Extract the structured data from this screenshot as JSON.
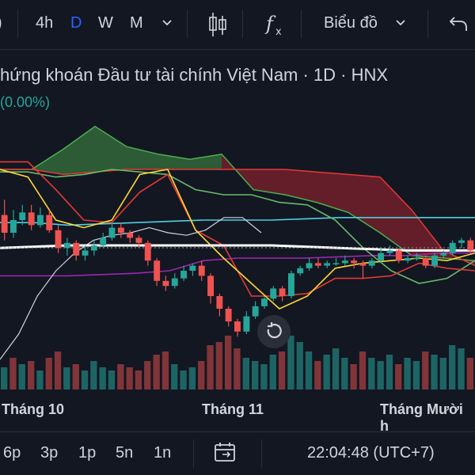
{
  "toolbar": {
    "partial_left": ")",
    "intervals": [
      "4h",
      "D",
      "W",
      "M"
    ],
    "active_interval": "D",
    "chart_type_label": "Biểu đồ"
  },
  "header": {
    "title": "hứng khoán Đầu tư tài chính Việt Nam · 1D · HNX",
    "change": "(0.00%)"
  },
  "chart_data": {
    "type": "candlestick",
    "x_labels": [
      "Tháng 10",
      "Tháng 11",
      "Tháng Mười h"
    ],
    "colors": {
      "up": "#26a69a",
      "down": "#ef5350",
      "background": "#131722"
    },
    "indicators": [
      "Ichimoku cloud",
      "moving averages",
      "volume"
    ],
    "candles_ohlc": [
      [
        0.62,
        0.55,
        0.68,
        0.52
      ],
      [
        0.55,
        0.6,
        0.64,
        0.53
      ],
      [
        0.6,
        0.63,
        0.66,
        0.58
      ],
      [
        0.63,
        0.58,
        0.66,
        0.56
      ],
      [
        0.58,
        0.62,
        0.65,
        0.57
      ],
      [
        0.62,
        0.56,
        0.64,
        0.55
      ],
      [
        0.56,
        0.49,
        0.58,
        0.47
      ],
      [
        0.49,
        0.51,
        0.53,
        0.46
      ],
      [
        0.51,
        0.46,
        0.52,
        0.44
      ],
      [
        0.46,
        0.48,
        0.5,
        0.44
      ],
      [
        0.48,
        0.5,
        0.52,
        0.46
      ],
      [
        0.5,
        0.53,
        0.55,
        0.49
      ],
      [
        0.53,
        0.57,
        0.59,
        0.52
      ],
      [
        0.57,
        0.55,
        0.59,
        0.53
      ],
      [
        0.55,
        0.53,
        0.56,
        0.51
      ],
      [
        0.53,
        0.51,
        0.54,
        0.49
      ],
      [
        0.51,
        0.44,
        0.52,
        0.42
      ],
      [
        0.44,
        0.36,
        0.45,
        0.34
      ],
      [
        0.36,
        0.34,
        0.38,
        0.32
      ],
      [
        0.34,
        0.37,
        0.39,
        0.33
      ],
      [
        0.37,
        0.4,
        0.42,
        0.36
      ],
      [
        0.4,
        0.42,
        0.43,
        0.38
      ],
      [
        0.42,
        0.38,
        0.44,
        0.36
      ],
      [
        0.38,
        0.3,
        0.39,
        0.27
      ],
      [
        0.3,
        0.25,
        0.31,
        0.22
      ],
      [
        0.25,
        0.2,
        0.26,
        0.18
      ],
      [
        0.2,
        0.16,
        0.21,
        0.14
      ],
      [
        0.16,
        0.22,
        0.24,
        0.15
      ],
      [
        0.22,
        0.26,
        0.28,
        0.21
      ],
      [
        0.26,
        0.29,
        0.3,
        0.25
      ],
      [
        0.29,
        0.33,
        0.34,
        0.28
      ],
      [
        0.33,
        0.3,
        0.34,
        0.28
      ],
      [
        0.3,
        0.39,
        0.4,
        0.29
      ],
      [
        0.39,
        0.41,
        0.42,
        0.38
      ],
      [
        0.41,
        0.43,
        0.45,
        0.4
      ],
      [
        0.43,
        0.42,
        0.45,
        0.41
      ],
      [
        0.42,
        0.43,
        0.44,
        0.41
      ],
      [
        0.43,
        0.43,
        0.45,
        0.42
      ],
      [
        0.43,
        0.44,
        0.46,
        0.42
      ],
      [
        0.44,
        0.43,
        0.45,
        0.41
      ],
      [
        0.43,
        0.42,
        0.44,
        0.37
      ],
      [
        0.42,
        0.44,
        0.45,
        0.41
      ],
      [
        0.44,
        0.47,
        0.49,
        0.43
      ],
      [
        0.47,
        0.48,
        0.5,
        0.46
      ],
      [
        0.48,
        0.44,
        0.49,
        0.43
      ],
      [
        0.44,
        0.45,
        0.46,
        0.43
      ],
      [
        0.45,
        0.45,
        0.47,
        0.44
      ],
      [
        0.45,
        0.42,
        0.46,
        0.41
      ],
      [
        0.42,
        0.46,
        0.47,
        0.41
      ],
      [
        0.46,
        0.47,
        0.48,
        0.45
      ],
      [
        0.47,
        0.51,
        0.52,
        0.46
      ],
      [
        0.51,
        0.52,
        0.53,
        0.49
      ],
      [
        0.52,
        0.48,
        0.53,
        0.47
      ]
    ],
    "volume": [
      0.35,
      0.5,
      0.4,
      0.45,
      0.3,
      0.5,
      0.6,
      0.35,
      0.4,
      0.3,
      0.45,
      0.35,
      0.3,
      0.4,
      0.35,
      0.3,
      0.45,
      0.55,
      0.6,
      0.4,
      0.3,
      0.35,
      0.45,
      0.7,
      0.75,
      0.85,
      0.65,
      0.5,
      0.45,
      0.4,
      0.55,
      0.6,
      0.85,
      0.75,
      0.6,
      0.45,
      0.55,
      0.65,
      0.5,
      0.4,
      0.6,
      0.5,
      0.45,
      0.55,
      0.4,
      0.5,
      0.45,
      0.6,
      0.55,
      0.5,
      0.7,
      0.65,
      0.5
    ],
    "volume_up": [
      1,
      0,
      1,
      0,
      1,
      0,
      0,
      1,
      0,
      1,
      1,
      1,
      1,
      0,
      0,
      0,
      0,
      0,
      0,
      1,
      1,
      1,
      0,
      0,
      0,
      0,
      0,
      1,
      1,
      1,
      1,
      0,
      1,
      1,
      1,
      0,
      1,
      1,
      1,
      0,
      0,
      1,
      1,
      1,
      0,
      1,
      1,
      0,
      1,
      1,
      1,
      1,
      0
    ],
    "ma_white": [
      0.49,
      0.495,
      0.5,
      0.5,
      0.5,
      0.5,
      0.5,
      0.5,
      0.5,
      0.495,
      0.49,
      0.485,
      0.48,
      0.48,
      0.48
    ],
    "ma_white_slow": [
      0.05,
      0.15,
      0.3,
      0.4,
      0.47,
      0.52,
      0.54,
      0.55,
      0.57,
      0.55,
      0.54,
      0.56,
      0.61,
      0.61,
      0.55
    ],
    "ma_cyan": [
      0.59,
      0.59,
      0.58,
      0.585,
      0.59,
      0.595,
      0.6,
      0.6,
      0.6,
      0.605,
      0.61,
      0.61,
      0.61,
      0.61,
      0.61
    ],
    "ma_purple": [
      0.38,
      0.38,
      0.38,
      0.385,
      0.39,
      0.4,
      0.44,
      0.45,
      0.45,
      0.45,
      0.455,
      0.46,
      0.46,
      0.47,
      0.47
    ],
    "tenkan_yellow": [
      0.8,
      0.77,
      0.6,
      0.57,
      0.6,
      0.78,
      0.8,
      0.56,
      0.45,
      0.35,
      0.25,
      0.3,
      0.41,
      0.43,
      0.44,
      0.45,
      0.44,
      0.47
    ],
    "kijun_red": [
      0.83,
      0.83,
      0.72,
      0.6,
      0.59,
      0.71,
      0.78,
      0.56,
      0.5,
      0.3,
      0.3,
      0.31,
      0.37,
      0.37,
      0.38,
      0.43,
      0.41,
      0.4
    ],
    "span_green": [
      0.79,
      0.79,
      0.77,
      0.78,
      0.8,
      0.79,
      0.78,
      0.72,
      0.7,
      0.7,
      0.67,
      0.66,
      0.6,
      0.49,
      0.4,
      0.35,
      0.37,
      0.44
    ],
    "cloud_a": [
      0.8,
      0.8,
      0.88,
      0.97,
      0.89,
      0.86,
      0.84,
      0.86,
      0.72,
      0.7,
      0.67,
      0.63,
      0.55,
      0.46,
      0.45,
      0.44
    ],
    "cloud_b": [
      0.8,
      0.8,
      0.78,
      0.79,
      0.8,
      0.8,
      0.8,
      0.8,
      0.8,
      0.8,
      0.79,
      0.78,
      0.77,
      0.64,
      0.48,
      0.42
    ]
  },
  "bottombar": {
    "ranges": [
      "6p",
      "3p",
      "1p",
      "5n",
      "1n"
    ],
    "clock": "22:04:48 (UTC+7)"
  },
  "icons": {
    "candles": "candles-icon",
    "fx": "fx-icon",
    "undo": "undo-icon",
    "calendar": "calendar-icon",
    "reset": "reset-icon"
  }
}
